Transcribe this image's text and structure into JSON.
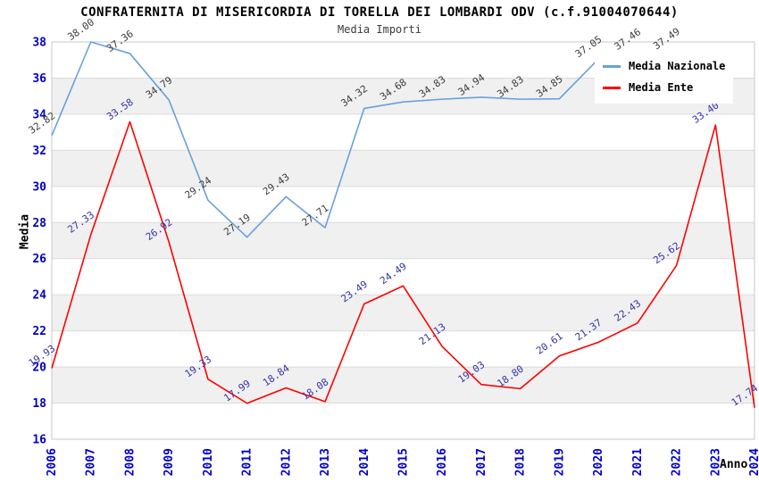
{
  "page": {
    "title": "CONFRATERNITA DI MISERICORDIA DI TORELLA DEI LOMBARDI ODV (c.f.91004070644)",
    "subtitle": "Media Importi"
  },
  "axes": {
    "y_title": "Media",
    "x_title": "Anno"
  },
  "legend": {
    "position": "top-right",
    "items": [
      {
        "label": "Media Nazionale",
        "color": "#68A1DC"
      },
      {
        "label": "Media Ente",
        "color": "#FF0000"
      }
    ]
  },
  "colors": {
    "band_fill": "#F0F0F0",
    "gridline": "#DBDBDB",
    "plot_border": "#C8C8C8",
    "tick_label": "#0000CC",
    "nazionale_line": "#68A1DC",
    "nazionale_point_label": "#3C3C3C",
    "ente_line": "#FF0000",
    "ente_point_label": "#3333AA"
  },
  "chart_data": {
    "type": "line",
    "title": "CONFRATERNITA DI MISERICORDIA DI TORELLA DEI LOMBARDI ODV (c.f.91004070644)",
    "subtitle": "Media Importi",
    "xlabel": "Anno",
    "ylabel": "Media",
    "grid": "horizontal gridlines every 2 units with alternating gray bands (18-20, 22-24, 26-28, 30-32, 34-36 shaded)",
    "legend_position": "top-right",
    "xlim": [
      2006,
      2024
    ],
    "ylim": [
      16,
      38
    ],
    "ytick_step": 2,
    "yticks": [
      "16",
      "18",
      "20",
      "22",
      "24",
      "26",
      "28",
      "30",
      "32",
      "34",
      "36",
      "38"
    ],
    "x": [
      "2006",
      "2007",
      "2008",
      "2009",
      "2010",
      "2011",
      "2012",
      "2013",
      "2014",
      "2015",
      "2016",
      "2017",
      "2018",
      "2019",
      "2020",
      "2021",
      "2022",
      "2023",
      "2024"
    ],
    "series": [
      {
        "name": "Media Nazionale",
        "color": "#68A1DC",
        "label_color": "#3C3C3C",
        "x": [
          2006,
          2007,
          2008,
          2009,
          2010,
          2011,
          2012,
          2013,
          2014,
          2015,
          2016,
          2017,
          2018,
          2019,
          2020,
          2021,
          2022
        ],
        "values": [
          32.82,
          38.0,
          37.36,
          34.79,
          29.24,
          27.19,
          29.43,
          27.71,
          34.32,
          34.68,
          34.83,
          34.94,
          34.83,
          34.85,
          37.05,
          37.46,
          37.49
        ],
        "note": "2021 value label partially hidden behind legend; series ends at 2022"
      },
      {
        "name": "Media Ente",
        "color": "#FF0000",
        "label_color": "#3333AA",
        "x": [
          2006,
          2007,
          2008,
          2009,
          2010,
          2011,
          2012,
          2013,
          2014,
          2015,
          2016,
          2017,
          2018,
          2019,
          2020,
          2021,
          2022,
          2023,
          2024
        ],
        "values": [
          19.93,
          27.33,
          33.58,
          26.92,
          19.33,
          17.99,
          18.84,
          18.08,
          23.49,
          24.49,
          21.13,
          19.03,
          18.8,
          20.61,
          21.37,
          22.43,
          25.62,
          33.4,
          17.74
        ]
      }
    ]
  }
}
